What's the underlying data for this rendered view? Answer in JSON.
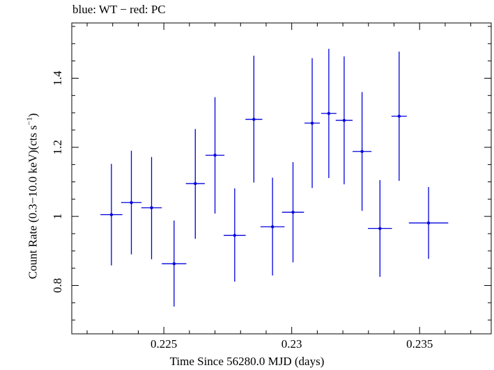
{
  "chart_data": {
    "type": "scatter",
    "title": "blue: WT − red: PC",
    "xlabel": "Time Since 56280.0 MJD (days)",
    "ylabel": "Count Rate (0.3−10.0 keV)(cts s",
    "ylabel_sup": "−1",
    "ylabel_close": ")",
    "xlim": [
      0.2214,
      0.2378
    ],
    "ylim": [
      0.66,
      1.56
    ],
    "xticks": [
      0.225,
      0.23,
      0.235
    ],
    "xtick_labels": [
      "0.225",
      "0.23",
      "0.235"
    ],
    "yticks": [
      0.8,
      1.0,
      1.2,
      1.4
    ],
    "ytick_labels": [
      "0.8",
      "1",
      "1.2",
      "1.4"
    ],
    "grid": false,
    "series": [
      {
        "color": "#0000dd",
        "points": [
          {
            "x": 0.22295,
            "y": 1.005,
            "xerr": 0.00043,
            "ylo": 0.858,
            "yhi": 1.152
          },
          {
            "x": 0.22373,
            "y": 1.04,
            "xerr": 0.0004,
            "ylo": 0.89,
            "yhi": 1.19
          },
          {
            "x": 0.22452,
            "y": 1.025,
            "xerr": 0.0004,
            "ylo": 0.876,
            "yhi": 1.172
          },
          {
            "x": 0.2254,
            "y": 0.863,
            "xerr": 0.00048,
            "ylo": 0.739,
            "yhi": 0.988
          },
          {
            "x": 0.22623,
            "y": 1.095,
            "xerr": 0.00037,
            "ylo": 0.935,
            "yhi": 1.253
          },
          {
            "x": 0.227,
            "y": 1.177,
            "xerr": 0.00037,
            "ylo": 1.008,
            "yhi": 1.345
          },
          {
            "x": 0.22777,
            "y": 0.945,
            "xerr": 0.00043,
            "ylo": 0.811,
            "yhi": 1.081
          },
          {
            "x": 0.22852,
            "y": 1.281,
            "xerr": 0.00033,
            "ylo": 1.098,
            "yhi": 1.465
          },
          {
            "x": 0.22925,
            "y": 0.97,
            "xerr": 0.00047,
            "ylo": 0.829,
            "yhi": 1.112
          },
          {
            "x": 0.23005,
            "y": 1.012,
            "xerr": 0.00043,
            "ylo": 0.867,
            "yhi": 1.157
          },
          {
            "x": 0.2308,
            "y": 1.27,
            "xerr": 0.0003,
            "ylo": 1.082,
            "yhi": 1.458
          },
          {
            "x": 0.23145,
            "y": 1.298,
            "xerr": 0.0003,
            "ylo": 1.111,
            "yhi": 1.485
          },
          {
            "x": 0.23205,
            "y": 1.278,
            "xerr": 0.00033,
            "ylo": 1.093,
            "yhi": 1.463
          },
          {
            "x": 0.23275,
            "y": 1.188,
            "xerr": 0.00037,
            "ylo": 1.016,
            "yhi": 1.36
          },
          {
            "x": 0.23345,
            "y": 0.965,
            "xerr": 0.00047,
            "ylo": 0.825,
            "yhi": 1.105
          },
          {
            "x": 0.2342,
            "y": 1.29,
            "xerr": 0.0003,
            "ylo": 1.103,
            "yhi": 1.477
          },
          {
            "x": 0.23535,
            "y": 0.981,
            "xerr": 0.00077,
            "ylo": 0.877,
            "yhi": 1.085
          }
        ]
      }
    ]
  }
}
